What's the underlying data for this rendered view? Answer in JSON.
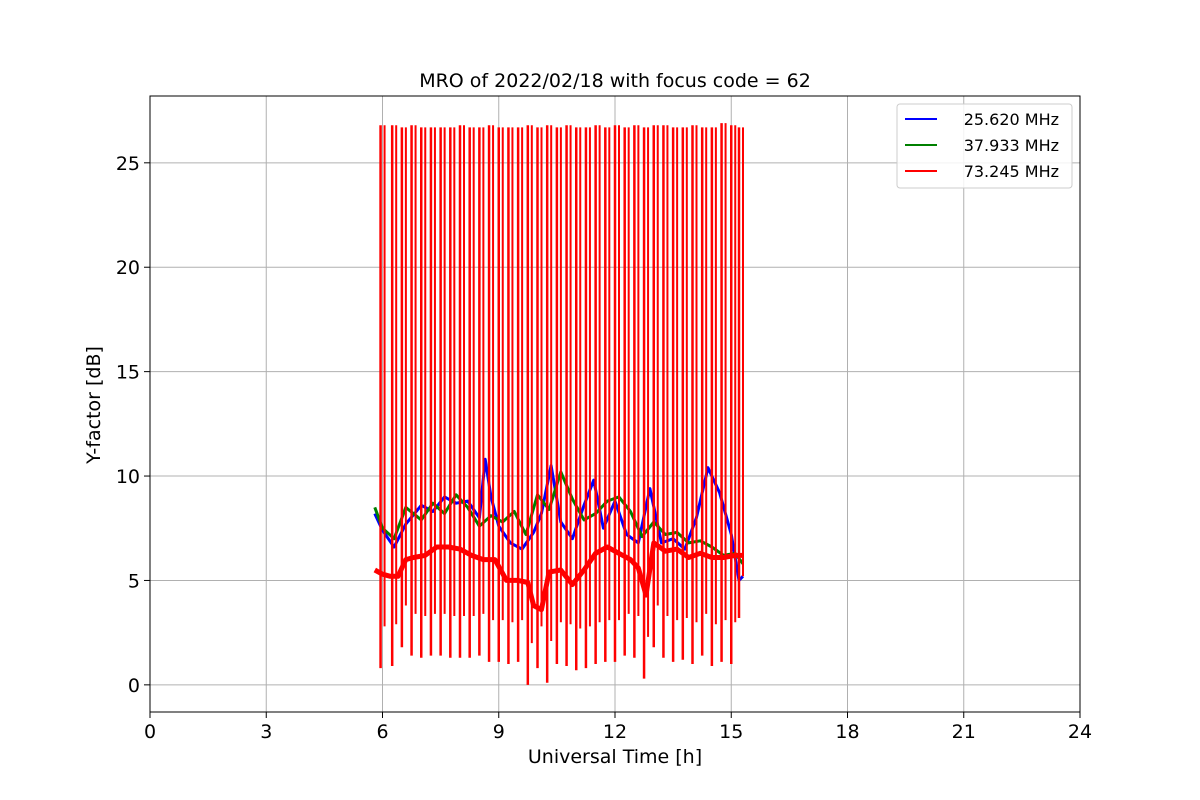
{
  "chart_data": {
    "type": "line",
    "title": "MRO of 2022/02/18 with focus code = 62",
    "xlabel": "Universal Time [h]",
    "ylabel": "Y-factor [dB]",
    "xlim": [
      0,
      24
    ],
    "ylim": [
      -1.3,
      28.2
    ],
    "xticks": [
      0,
      3,
      6,
      9,
      12,
      15,
      18,
      21,
      24
    ],
    "yticks": [
      0,
      5,
      10,
      15,
      20,
      25
    ],
    "grid": true,
    "legend_position": "top-right",
    "series": [
      {
        "name": "25.620 MHz",
        "color": "#0000ff",
        "x": [
          5.8,
          6.0,
          6.3,
          6.6,
          7.0,
          7.3,
          7.6,
          7.9,
          8.2,
          8.5,
          8.65,
          8.8,
          9.0,
          9.3,
          9.6,
          9.9,
          10.1,
          10.35,
          10.6,
          10.9,
          11.2,
          11.45,
          11.7,
          12.0,
          12.3,
          12.6,
          12.9,
          13.2,
          13.5,
          13.8,
          14.1,
          14.4,
          14.7,
          15.0,
          15.2,
          15.3
        ],
        "y": [
          8.2,
          7.4,
          6.6,
          7.7,
          8.6,
          8.3,
          9.0,
          8.7,
          8.8,
          8.0,
          10.8,
          9.0,
          7.6,
          6.8,
          6.5,
          7.3,
          8.2,
          10.5,
          7.8,
          7.0,
          8.6,
          9.8,
          7.5,
          8.8,
          7.2,
          6.8,
          9.4,
          6.8,
          7.0,
          6.5,
          8.0,
          10.4,
          9.2,
          7.2,
          5.0,
          5.2
        ]
      },
      {
        "name": "37.933 MHz",
        "color": "#008000",
        "x": [
          5.8,
          6.0,
          6.3,
          6.6,
          7.0,
          7.3,
          7.6,
          7.9,
          8.2,
          8.5,
          8.8,
          9.1,
          9.4,
          9.7,
          10.0,
          10.3,
          10.6,
          10.9,
          11.2,
          11.5,
          11.8,
          12.1,
          12.4,
          12.7,
          13.0,
          13.3,
          13.6,
          13.9,
          14.2,
          14.5,
          14.8,
          15.1,
          15.3
        ],
        "y": [
          8.5,
          7.5,
          7.0,
          8.5,
          7.9,
          8.7,
          8.2,
          9.1,
          8.5,
          7.6,
          8.1,
          7.8,
          8.3,
          7.2,
          9.1,
          8.4,
          10.2,
          8.9,
          7.9,
          8.2,
          8.8,
          9.0,
          8.3,
          7.1,
          7.8,
          7.2,
          7.3,
          6.8,
          6.9,
          6.6,
          6.2,
          6.3,
          5.8
        ]
      },
      {
        "name": "73.245 MHz",
        "color": "#ff0000",
        "x": [
          5.8,
          6.0,
          6.2,
          6.4,
          6.6,
          6.8,
          7.1,
          7.4,
          7.7,
          8.0,
          8.3,
          8.6,
          8.9,
          9.2,
          9.5,
          9.75,
          9.9,
          10.1,
          10.3,
          10.6,
          10.9,
          11.2,
          11.5,
          11.8,
          12.1,
          12.4,
          12.6,
          12.8,
          13.0,
          13.3,
          13.6,
          13.9,
          14.2,
          14.5,
          14.8,
          15.1,
          15.3
        ],
        "y": [
          5.5,
          5.3,
          5.2,
          5.2,
          6.0,
          6.1,
          6.2,
          6.6,
          6.6,
          6.5,
          6.2,
          6.0,
          6.0,
          5.0,
          5.0,
          4.9,
          3.8,
          3.6,
          5.4,
          5.5,
          4.8,
          5.5,
          6.3,
          6.6,
          6.3,
          6.0,
          5.6,
          4.3,
          6.8,
          6.4,
          6.5,
          6.1,
          6.3,
          6.1,
          6.1,
          6.2,
          6.2
        ]
      }
    ],
    "spikes": {
      "series": "73.245 MHz",
      "x": [
        5.95,
        6.25,
        6.5,
        6.75,
        7.0,
        7.25,
        7.5,
        7.75,
        8.0,
        8.25,
        8.5,
        8.75,
        9.0,
        9.25,
        9.5,
        9.75,
        10.0,
        10.25,
        10.5,
        10.75,
        11.0,
        11.25,
        11.5,
        11.75,
        12.0,
        12.25,
        12.5,
        12.75,
        13.0,
        13.25,
        13.5,
        13.75,
        14.0,
        14.25,
        14.5,
        14.75,
        15.0,
        15.2
      ],
      "peak": [
        26.8,
        26.8,
        26.7,
        26.8,
        26.7,
        26.7,
        26.7,
        26.7,
        26.8,
        26.7,
        26.7,
        26.8,
        26.7,
        26.7,
        26.7,
        26.8,
        26.7,
        26.8,
        26.7,
        26.8,
        26.7,
        26.7,
        26.8,
        26.7,
        26.8,
        26.7,
        26.8,
        26.7,
        26.8,
        26.8,
        26.7,
        26.7,
        26.8,
        26.7,
        26.7,
        26.9,
        26.8,
        26.7
      ],
      "trough": [
        0.8,
        0.9,
        1.8,
        1.4,
        1.3,
        1.4,
        1.4,
        1.3,
        1.3,
        1.3,
        1.4,
        1.1,
        1.1,
        1.0,
        1.1,
        0.0,
        0.8,
        0.1,
        1.0,
        0.9,
        0.7,
        0.8,
        1.0,
        1.1,
        1.1,
        1.4,
        1.3,
        0.3,
        1.8,
        1.3,
        1.1,
        1.2,
        1.0,
        1.4,
        0.9,
        1.1,
        1.0,
        3.2
      ]
    }
  }
}
